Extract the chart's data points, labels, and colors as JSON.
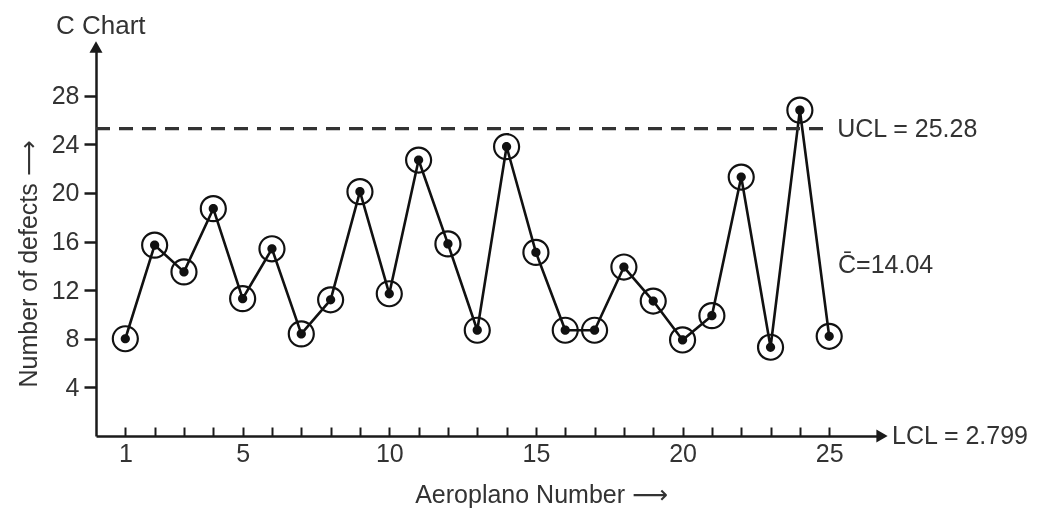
{
  "chart_data": {
    "type": "line",
    "title": "C Chart",
    "xlabel": "Aeroplano Number ⟶",
    "ylabel": "Number of defects ⟶",
    "x": [
      1,
      2,
      3,
      4,
      5,
      6,
      7,
      8,
      9,
      10,
      11,
      12,
      13,
      14,
      15,
      16,
      17,
      18,
      19,
      20,
      21,
      22,
      23,
      24,
      25
    ],
    "values": [
      8,
      15.7,
      13.5,
      18.7,
      11.3,
      15.4,
      8.4,
      11.2,
      20.1,
      11.7,
      22.7,
      15.8,
      8.7,
      23.8,
      15.1,
      8.7,
      8.7,
      13.9,
      11.1,
      7.9,
      9.9,
      21.3,
      7.3,
      26.8,
      8.2
    ],
    "color": "#111111",
    "marker": "circle",
    "line_style": "solid",
    "xlim": [
      0,
      26.8
    ],
    "xticks": [
      1,
      {
        "value": 2,
        "label": null
      },
      {
        "value": 3,
        "label": null
      },
      {
        "value": 4,
        "label": null
      },
      5,
      {
        "value": 6,
        "label": null
      },
      {
        "value": 7,
        "label": null
      },
      {
        "value": 8,
        "label": null
      },
      {
        "value": 9,
        "label": null
      },
      10,
      {
        "value": 11,
        "label": null
      },
      {
        "value": 12,
        "label": null
      },
      {
        "value": 13,
        "label": null
      },
      {
        "value": 14,
        "label": null
      },
      15,
      {
        "value": 16,
        "label": null
      },
      {
        "value": 17,
        "label": null
      },
      {
        "value": 18,
        "label": null
      },
      {
        "value": 19,
        "label": null
      },
      20,
      {
        "value": 21,
        "label": null
      },
      {
        "value": 22,
        "label": null
      },
      {
        "value": 23,
        "label": null
      },
      {
        "value": 24,
        "label": null
      },
      25
    ],
    "ylim": [
      0,
      32
    ],
    "yticks": [
      4,
      8,
      12,
      16,
      20,
      24,
      28
    ],
    "ref_lines": [
      {
        "axis": "y",
        "value": 25.28,
        "label": "UCL = 25.28",
        "color": "#333333",
        "line_style": "dashed"
      }
    ],
    "annotations": [
      "C̄=14.04",
      "LCL = 2.799"
    ]
  }
}
